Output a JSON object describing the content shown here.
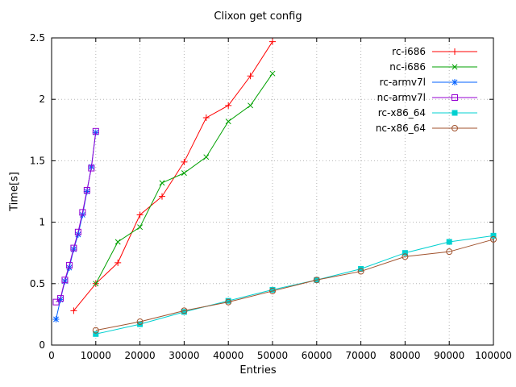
{
  "chart_data": {
    "type": "line",
    "title": "Clixon get config",
    "xlabel": "Entries",
    "ylabel": "Time[s]",
    "xlim": [
      0,
      100000
    ],
    "ylim": [
      0,
      2.5
    ],
    "grid": true,
    "legend_position": "top-right",
    "xticks": [
      0,
      10000,
      20000,
      30000,
      40000,
      50000,
      60000,
      70000,
      80000,
      90000,
      100000
    ],
    "xtick_labels": [
      "0",
      "10000",
      "20000",
      "30000",
      "40000",
      "50000",
      "60000",
      "70000",
      "80000",
      "90000",
      "100000"
    ],
    "yticks": [
      0,
      0.5,
      1,
      1.5,
      2,
      2.5
    ],
    "ytick_labels": [
      "0",
      "0.5",
      "1",
      "1.5",
      "2",
      "2.5"
    ],
    "series": [
      {
        "name": "rc-i686",
        "color": "#ff0000",
        "marker": "plus",
        "points": [
          [
            5000,
            0.28
          ],
          [
            10000,
            0.5
          ],
          [
            15000,
            0.67
          ],
          [
            20000,
            1.06
          ],
          [
            25000,
            1.21
          ],
          [
            30000,
            1.49
          ],
          [
            35000,
            1.85
          ],
          [
            40000,
            1.95
          ],
          [
            45000,
            2.19
          ],
          [
            50000,
            2.47
          ]
        ]
      },
      {
        "name": "nc-i686",
        "color": "#00a000",
        "marker": "cross",
        "points": [
          [
            10000,
            0.5
          ],
          [
            15000,
            0.84
          ],
          [
            20000,
            0.96
          ],
          [
            25000,
            1.32
          ],
          [
            30000,
            1.4
          ],
          [
            35000,
            1.53
          ],
          [
            40000,
            1.82
          ],
          [
            45000,
            1.95
          ],
          [
            50000,
            2.21
          ]
        ]
      },
      {
        "name": "rc-armv7l",
        "color": "#0060ff",
        "marker": "asterisk",
        "points": [
          [
            1000,
            0.21
          ],
          [
            2000,
            0.37
          ],
          [
            3000,
            0.52
          ],
          [
            4000,
            0.63
          ],
          [
            5000,
            0.78
          ],
          [
            6000,
            0.9
          ],
          [
            7000,
            1.06
          ],
          [
            8000,
            1.25
          ],
          [
            9000,
            1.45
          ],
          [
            10000,
            1.73
          ]
        ]
      },
      {
        "name": "nc-armv7l",
        "color": "#9400d3",
        "marker": "square-open",
        "points": [
          [
            1000,
            0.35
          ],
          [
            2000,
            0.38
          ],
          [
            3000,
            0.53
          ],
          [
            4000,
            0.65
          ],
          [
            5000,
            0.79
          ],
          [
            6000,
            0.92
          ],
          [
            7000,
            1.08
          ],
          [
            8000,
            1.26
          ],
          [
            9000,
            1.44
          ],
          [
            10000,
            1.74
          ]
        ]
      },
      {
        "name": "rc-x86_64",
        "color": "#00d0d0",
        "marker": "square-filled",
        "points": [
          [
            10000,
            0.09
          ],
          [
            20000,
            0.17
          ],
          [
            30000,
            0.27
          ],
          [
            40000,
            0.36
          ],
          [
            50000,
            0.45
          ],
          [
            60000,
            0.53
          ],
          [
            70000,
            0.62
          ],
          [
            80000,
            0.75
          ],
          [
            90000,
            0.84
          ],
          [
            100000,
            0.89
          ]
        ]
      },
      {
        "name": "nc-x86_64",
        "color": "#a0522d",
        "marker": "circle-open",
        "points": [
          [
            10000,
            0.12
          ],
          [
            20000,
            0.19
          ],
          [
            30000,
            0.28
          ],
          [
            40000,
            0.35
          ],
          [
            50000,
            0.44
          ],
          [
            60000,
            0.53
          ],
          [
            70000,
            0.6
          ],
          [
            80000,
            0.72
          ],
          [
            90000,
            0.76
          ],
          [
            100000,
            0.86
          ]
        ]
      }
    ]
  }
}
